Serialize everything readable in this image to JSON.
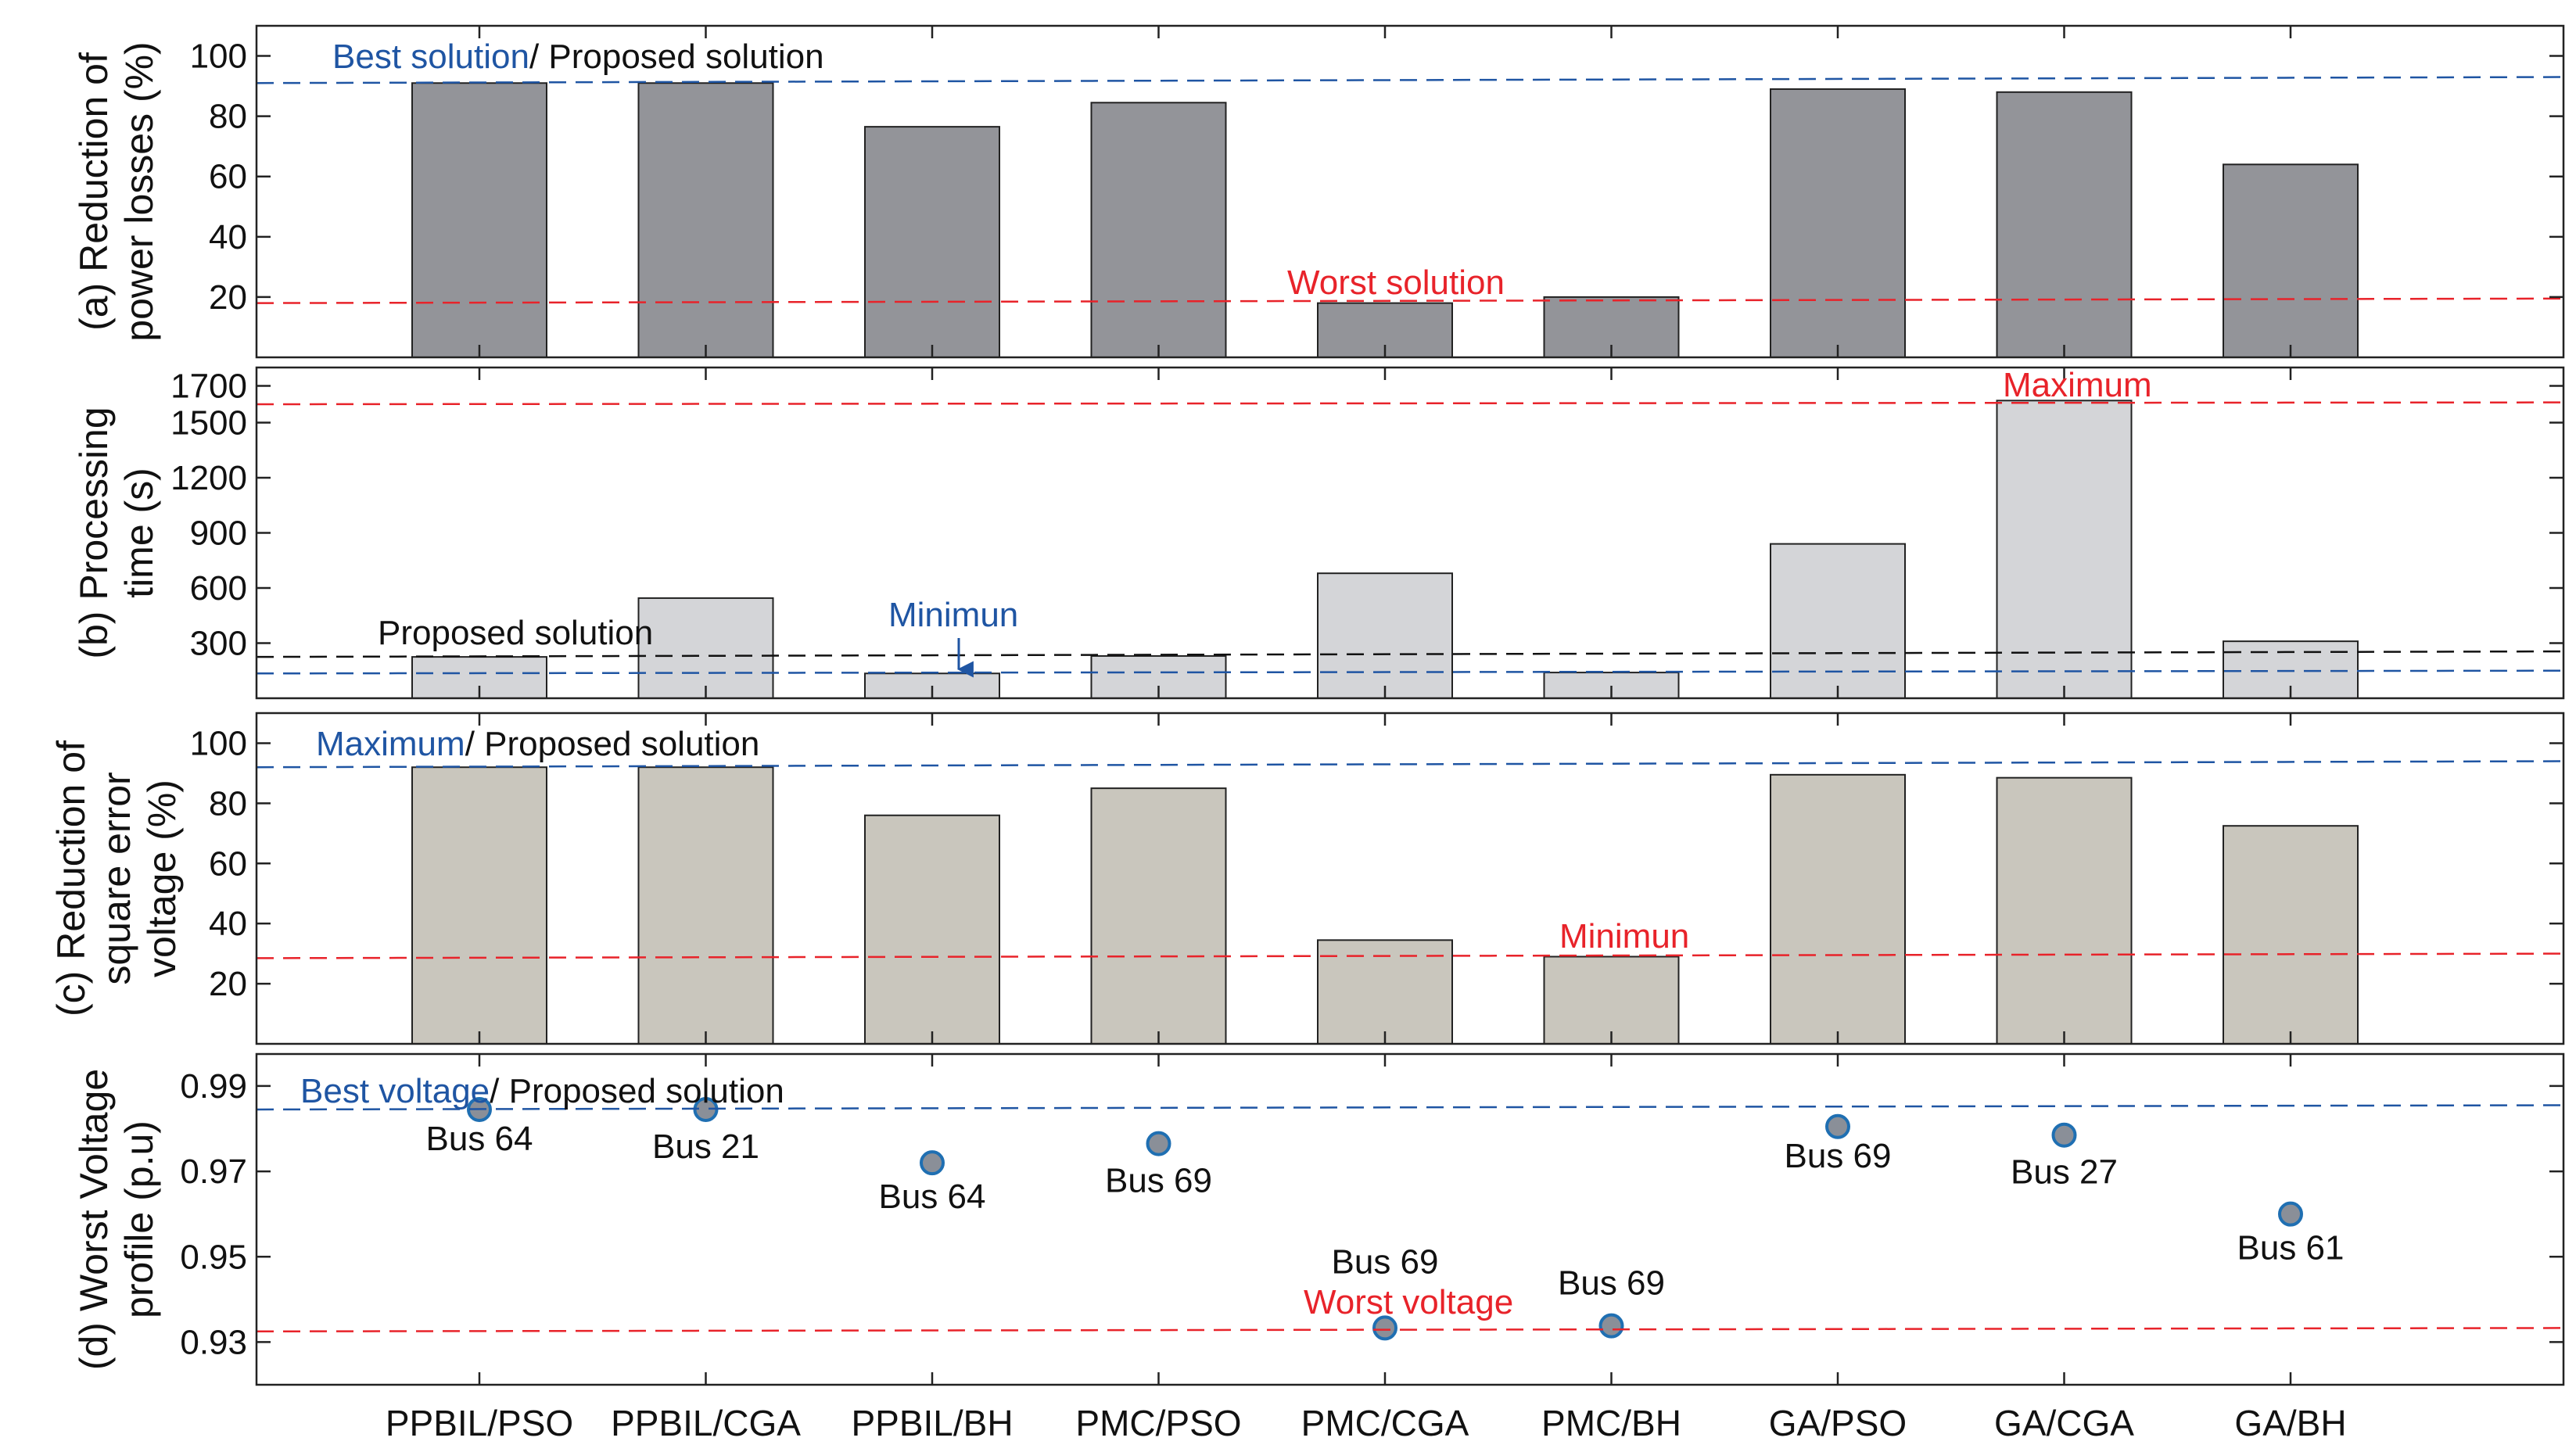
{
  "chart_data": {
    "type": "bar",
    "categories": [
      "PPBIL/PSO",
      "PPBIL/CGA",
      "PPBIL/BH",
      "PMC/PSO",
      "PMC/CGA",
      "PMC/BH",
      "GA/PSO",
      "GA/CGA",
      "GA/BH"
    ],
    "colors": {
      "blue": "#1f55a3",
      "red": "#e8232a",
      "black": "#111111",
      "dot_fill": "#8a8f98",
      "dot_edge": "#1f6fb2"
    },
    "panels": [
      {
        "id": "a",
        "ylabel": [
          "(a) Reduction of",
          "power losses (%)"
        ],
        "ylim": [
          0,
          110
        ],
        "yticks": [
          20,
          40,
          60,
          80,
          100
        ],
        "tick_labels": [
          "20",
          "40",
          "60",
          "80",
          "100"
        ],
        "bar_color": "#939499",
        "values": [
          91,
          91,
          76.5,
          84.5,
          18,
          20,
          89,
          88,
          64
        ],
        "refs": [
          {
            "value": 91,
            "color": "blue",
            "value_end": 93
          },
          {
            "value": 18,
            "color": "red",
            "value_end": 19.5
          }
        ],
        "annotations": [
          {
            "parts": [
              {
                "text": "Best solution",
                "color": "blue"
              },
              {
                "text": "/ Proposed solution",
                "color": "black"
              }
            ]
          },
          {
            "parts": [
              {
                "text": "Worst solution",
                "color": "red"
              }
            ]
          }
        ]
      },
      {
        "id": "b",
        "ylabel": [
          "(b) Processing",
          "time (s)"
        ],
        "ylim": [
          0,
          1800
        ],
        "yticks": [
          300,
          600,
          900,
          1200,
          1500,
          1700
        ],
        "tick_labels": [
          "300",
          "600",
          "900",
          "1200",
          "1500",
          "1700"
        ],
        "bar_color": "#d4d5d8",
        "values": [
          225,
          545,
          135,
          230,
          680,
          140,
          840,
          1620,
          310
        ],
        "refs": [
          {
            "value": 225,
            "color": "black",
            "value_end": 255
          },
          {
            "value": 135,
            "color": "blue",
            "value_end": 150
          },
          {
            "value": 1600,
            "color": "red",
            "value_end": 1610
          }
        ],
        "annotations": [
          {
            "parts": [
              {
                "text": "Proposed solution",
                "color": "black"
              }
            ]
          },
          {
            "parts": [
              {
                "text": "Minimun",
                "color": "blue"
              }
            ]
          },
          {
            "parts": [
              {
                "text": "Maximum",
                "color": "red"
              }
            ]
          }
        ]
      },
      {
        "id": "c",
        "ylabel": [
          "(c) Reduction of",
          "square error",
          "voltage (%)"
        ],
        "ylim": [
          0,
          110
        ],
        "yticks": [
          20,
          40,
          60,
          80,
          100
        ],
        "tick_labels": [
          "20",
          "40",
          "60",
          "80",
          "100"
        ],
        "bar_color": "#c9c6bd",
        "values": [
          92,
          92,
          76,
          85,
          34.5,
          29,
          89.5,
          88.5,
          72.5
        ],
        "refs": [
          {
            "value": 92,
            "color": "blue",
            "value_end": 94
          },
          {
            "value": 28.5,
            "color": "red",
            "value_end": 30
          }
        ],
        "annotations": [
          {
            "parts": [
              {
                "text": "Maximum",
                "color": "blue"
              },
              {
                "text": "/ Proposed solution",
                "color": "black"
              }
            ]
          },
          {
            "parts": [
              {
                "text": "Minimun",
                "color": "red"
              }
            ]
          }
        ]
      },
      {
        "id": "d",
        "type": "scatter",
        "ylabel": [
          "(d) Worst Voltage",
          "profile (p.u)"
        ],
        "ylim": [
          0.92,
          0.9975
        ],
        "yticks": [
          0.93,
          0.95,
          0.97,
          0.99
        ],
        "tick_labels": [
          "0.93",
          "0.95",
          "0.97",
          "0.99"
        ],
        "values": [
          0.9845,
          0.9845,
          0.972,
          0.9765,
          0.9333,
          0.9338,
          0.9805,
          0.9785,
          0.96
        ],
        "bus_labels": [
          "Bus 64",
          "Bus 21",
          "Bus 64",
          "Bus 69",
          "Bus 69",
          "Bus 69",
          "Bus 69",
          "Bus 27",
          "Bus 61"
        ],
        "refs": [
          {
            "value": 0.9845,
            "color": "blue",
            "value_end": 0.9855
          },
          {
            "value": 0.9325,
            "color": "red",
            "value_end": 0.9333
          }
        ],
        "annotations": [
          {
            "parts": [
              {
                "text": "Best voltage",
                "color": "blue"
              },
              {
                "text": "/ Proposed solution",
                "color": "black"
              }
            ]
          },
          {
            "parts": [
              {
                "text": "Worst voltage",
                "color": "red"
              }
            ]
          }
        ]
      }
    ]
  }
}
